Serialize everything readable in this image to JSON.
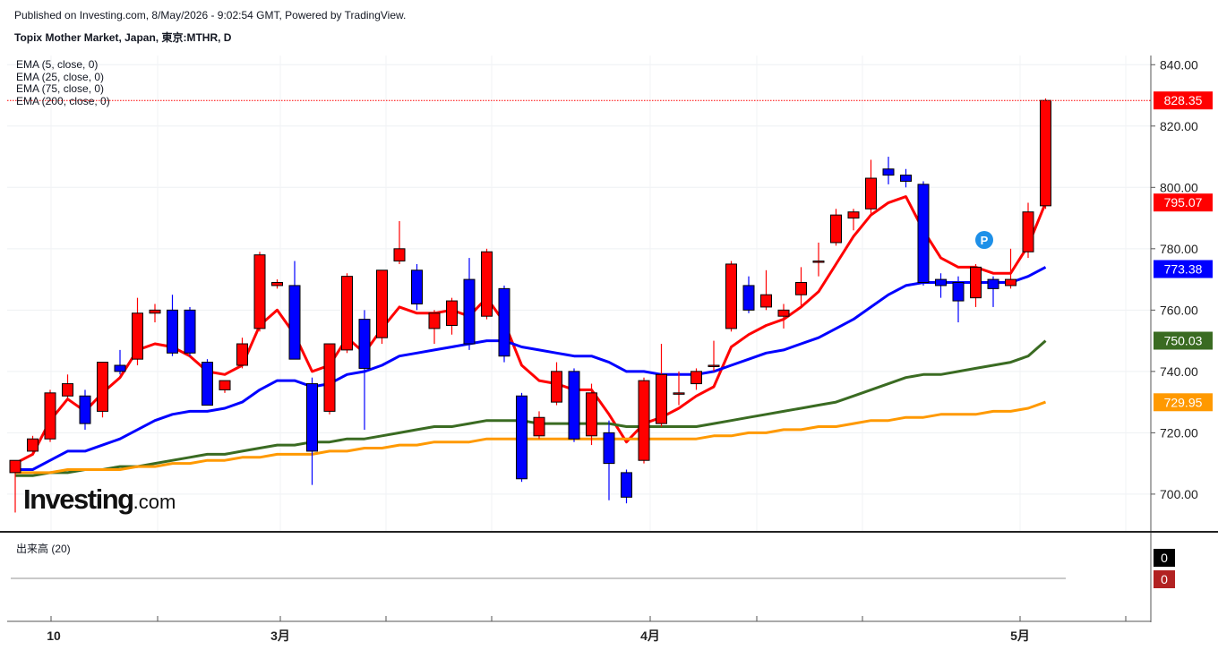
{
  "header": {
    "published": "Published on Investing.com, 8/May/2026 - 9:02:54 GMT, Powered by TradingView.",
    "title": "Topix Mother Market, Japan, 東京:MTHR, D"
  },
  "legend": [
    "EMA (5, close, 0)",
    "EMA (25, close, 0)",
    "EMA (75, close, 0)",
    "EMA (200, close, 0)"
  ],
  "logo": {
    "main": "Investing",
    "suffix": ".com"
  },
  "volume": {
    "label": "出来高 (20)",
    "values": [
      "0",
      "0"
    ]
  },
  "chart_data": {
    "type": "candlestick",
    "x_ticks": [
      "10",
      "3月",
      "4月",
      "5月"
    ],
    "ylim": [
      688,
      843
    ],
    "y_ticks": [
      700,
      720,
      740,
      760,
      780,
      800,
      820,
      840
    ],
    "y_tick_labels": [
      "700.00",
      "720.00",
      "740.00",
      "760.00",
      "780.00",
      "800.00",
      "820.00",
      "840.00"
    ],
    "last_price": {
      "label": "828.35",
      "value": 828.35,
      "color": "#ff0000"
    },
    "price_tags": [
      {
        "label": "795.07",
        "value": 795.07,
        "color": "#ff0000"
      },
      {
        "label": "773.38",
        "value": 773.38,
        "color": "#0000ff"
      },
      {
        "label": "750.03",
        "value": 750.03,
        "color": "#3a6b22"
      },
      {
        "label": "729.95",
        "value": 729.95,
        "color": "#ff9900"
      }
    ],
    "candles": [
      {
        "o": 707,
        "h": 711,
        "l": 694,
        "c": 711
      },
      {
        "o": 714,
        "h": 719,
        "l": 713,
        "c": 718
      },
      {
        "o": 718,
        "h": 734,
        "l": 717,
        "c": 733
      },
      {
        "o": 732,
        "h": 739,
        "l": 731,
        "c": 736
      },
      {
        "o": 732,
        "h": 734,
        "l": 721,
        "c": 723
      },
      {
        "o": 727,
        "h": 743,
        "l": 725,
        "c": 743
      },
      {
        "o": 742,
        "h": 747,
        "l": 739,
        "c": 740
      },
      {
        "o": 744,
        "h": 764,
        "l": 742,
        "c": 759
      },
      {
        "o": 759,
        "h": 762,
        "l": 756,
        "c": 760
      },
      {
        "o": 760,
        "h": 765,
        "l": 745,
        "c": 746
      },
      {
        "o": 760,
        "h": 761,
        "l": 745,
        "c": 746
      },
      {
        "o": 743,
        "h": 744,
        "l": 729,
        "c": 729
      },
      {
        "o": 734,
        "h": 737,
        "l": 733,
        "c": 737
      },
      {
        "o": 742,
        "h": 751,
        "l": 741,
        "c": 749
      },
      {
        "o": 754,
        "h": 779,
        "l": 753,
        "c": 778
      },
      {
        "o": 768,
        "h": 770,
        "l": 767,
        "c": 769
      },
      {
        "o": 768,
        "h": 776,
        "l": 744,
        "c": 744
      },
      {
        "o": 736,
        "h": 738,
        "l": 703,
        "c": 714
      },
      {
        "o": 727,
        "h": 749,
        "l": 726,
        "c": 749
      },
      {
        "o": 747,
        "h": 772,
        "l": 746,
        "c": 771
      },
      {
        "o": 757,
        "h": 760,
        "l": 721,
        "c": 741
      },
      {
        "o": 751,
        "h": 773,
        "l": 749,
        "c": 773
      },
      {
        "o": 776,
        "h": 789,
        "l": 775,
        "c": 780
      },
      {
        "o": 773,
        "h": 775,
        "l": 760,
        "c": 762
      },
      {
        "o": 754,
        "h": 760,
        "l": 749,
        "c": 759
      },
      {
        "o": 755,
        "h": 764,
        "l": 752,
        "c": 763
      },
      {
        "o": 770,
        "h": 777,
        "l": 747,
        "c": 749
      },
      {
        "o": 758,
        "h": 780,
        "l": 757,
        "c": 779
      },
      {
        "o": 767,
        "h": 768,
        "l": 743,
        "c": 745
      },
      {
        "o": 732,
        "h": 733,
        "l": 704,
        "c": 705
      },
      {
        "o": 719,
        "h": 727,
        "l": 718,
        "c": 725
      },
      {
        "o": 730,
        "h": 743,
        "l": 729,
        "c": 740
      },
      {
        "o": 740,
        "h": 741,
        "l": 717,
        "c": 718
      },
      {
        "o": 719,
        "h": 736,
        "l": 716,
        "c": 733
      },
      {
        "o": 720,
        "h": 724,
        "l": 698,
        "c": 710
      },
      {
        "o": 707,
        "h": 708,
        "l": 697,
        "c": 699
      },
      {
        "o": 711,
        "h": 738,
        "l": 710,
        "c": 737
      },
      {
        "o": 723,
        "h": 749,
        "l": 722,
        "c": 739
      },
      {
        "o": 733,
        "h": 740,
        "l": 729,
        "c": 733
      },
      {
        "o": 736,
        "h": 741,
        "l": 734,
        "c": 740
      },
      {
        "o": 742,
        "h": 750,
        "l": 740,
        "c": 742
      },
      {
        "o": 754,
        "h": 776,
        "l": 753,
        "c": 775
      },
      {
        "o": 768,
        "h": 771,
        "l": 759,
        "c": 760
      },
      {
        "o": 761,
        "h": 773,
        "l": 760,
        "c": 765
      },
      {
        "o": 758,
        "h": 762,
        "l": 754,
        "c": 760
      },
      {
        "o": 765,
        "h": 774,
        "l": 761,
        "c": 769
      },
      {
        "o": 776,
        "h": 782,
        "l": 771,
        "c": 776
      },
      {
        "o": 782,
        "h": 793,
        "l": 781,
        "c": 791
      },
      {
        "o": 790,
        "h": 793,
        "l": 786,
        "c": 792
      },
      {
        "o": 793,
        "h": 809,
        "l": 791,
        "c": 803
      },
      {
        "o": 806,
        "h": 810,
        "l": 801,
        "c": 804
      },
      {
        "o": 804,
        "h": 806,
        "l": 800,
        "c": 802
      },
      {
        "o": 801,
        "h": 802,
        "l": 768,
        "c": 769
      },
      {
        "o": 770,
        "h": 772,
        "l": 764,
        "c": 768
      },
      {
        "o": 769,
        "h": 771,
        "l": 756,
        "c": 763
      },
      {
        "o": 764,
        "h": 775,
        "l": 761,
        "c": 774
      },
      {
        "o": 770,
        "h": 771,
        "l": 761,
        "c": 767
      },
      {
        "o": 768,
        "h": 780,
        "l": 767,
        "c": 770
      },
      {
        "o": 779,
        "h": 795,
        "l": 777,
        "c": 792
      },
      {
        "o": 794,
        "h": 829,
        "l": 793,
        "c": 828.35
      }
    ],
    "series": [
      {
        "name": "EMA (5, close, 0)",
        "color": "#ff0000",
        "values": [
          710,
          713,
          724,
          731,
          727,
          733,
          738,
          747,
          749,
          748,
          745,
          740,
          739,
          742,
          755,
          760,
          752,
          740,
          742,
          751,
          746,
          754,
          761,
          759,
          759,
          760,
          758,
          764,
          756,
          742,
          737,
          736,
          734,
          734,
          726,
          717,
          723,
          725,
          728,
          732,
          735,
          748,
          752,
          755,
          757,
          761,
          766,
          775,
          784,
          791,
          795,
          797,
          786,
          777,
          774,
          774,
          772,
          772,
          781,
          795
        ]
      },
      {
        "name": "EMA (25, close, 0)",
        "color": "#0000ff",
        "values": [
          708,
          708,
          711,
          714,
          714,
          716,
          718,
          721,
          724,
          726,
          727,
          727,
          728,
          730,
          734,
          737,
          737,
          735,
          736,
          739,
          740,
          742,
          745,
          746,
          747,
          748,
          749,
          750,
          750,
          748,
          747,
          746,
          745,
          745,
          743,
          740,
          740,
          739,
          739,
          739,
          740,
          742,
          744,
          746,
          747,
          749,
          751,
          754,
          757,
          761,
          765,
          768,
          769,
          769,
          769,
          769,
          769,
          769,
          771,
          774
        ]
      },
      {
        "name": "EMA (75, close, 0)",
        "color": "#3a6b22",
        "values": [
          706,
          706,
          707,
          707,
          708,
          708,
          709,
          709,
          710,
          711,
          712,
          713,
          713,
          714,
          715,
          716,
          716,
          717,
          717,
          718,
          718,
          719,
          720,
          721,
          722,
          722,
          723,
          724,
          724,
          724,
          723,
          723,
          723,
          723,
          723,
          722,
          722,
          722,
          722,
          722,
          723,
          724,
          725,
          726,
          727,
          728,
          729,
          730,
          732,
          734,
          736,
          738,
          739,
          739,
          740,
          741,
          742,
          743,
          745,
          750
        ]
      },
      {
        "name": "EMA (200, close, 0)",
        "color": "#ff9900",
        "values": [
          707,
          707,
          707,
          708,
          708,
          708,
          708,
          709,
          709,
          710,
          710,
          711,
          711,
          712,
          712,
          713,
          713,
          713,
          714,
          714,
          715,
          715,
          716,
          716,
          717,
          717,
          717,
          718,
          718,
          718,
          718,
          718,
          718,
          718,
          718,
          718,
          718,
          718,
          718,
          718,
          719,
          719,
          720,
          720,
          721,
          721,
          722,
          722,
          723,
          724,
          724,
          725,
          725,
          726,
          726,
          726,
          727,
          727,
          728,
          730
        ]
      }
    ]
  }
}
